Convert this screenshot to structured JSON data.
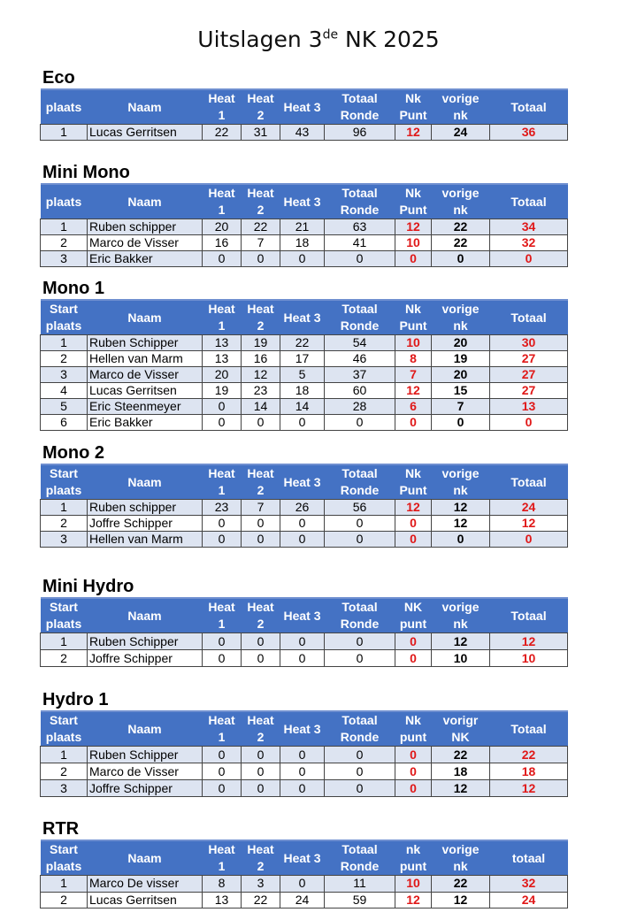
{
  "title": {
    "main": "Uitslagen 3",
    "sup": "de",
    "rest": " NK 2025"
  },
  "colors": {
    "header": "#4472c4",
    "alt_row": "#dde4f1",
    "red": "#e01818"
  },
  "tables": [
    {
      "name": "Eco",
      "headers": [
        "plaats",
        "Naam",
        "Heat\n1",
        "Heat\n2",
        "Heat 3",
        "Totaal\nRonde",
        "Nk\nPunt",
        "vorige\nnk",
        "Totaal"
      ],
      "rows": [
        [
          "1",
          "Lucas Gerritsen",
          "22",
          "31",
          "43",
          "96",
          "12",
          "24",
          "36"
        ]
      ]
    },
    {
      "name": "Mini Mono",
      "headers": [
        "plaats",
        "Naam",
        "Heat\n1",
        "Heat\n2",
        "Heat 3",
        "Totaal\nRonde",
        "Nk\nPunt",
        "vorige\nnk",
        "Totaal"
      ],
      "rows": [
        [
          "1",
          "Ruben schipper",
          "20",
          "22",
          "21",
          "63",
          "12",
          "22",
          "34"
        ],
        [
          "2",
          "Marco de Visser",
          "16",
          "7",
          "18",
          "41",
          "10",
          "22",
          "32"
        ],
        [
          "3",
          "Eric Bakker",
          "0",
          "0",
          "0",
          "0",
          "0",
          "0",
          "0"
        ]
      ]
    },
    {
      "name": "Mono 1",
      "headers": [
        "Start\nplaats",
        "Naam",
        "Heat\n1",
        "Heat\n2",
        "Heat 3",
        "Totaal\nRonde",
        "Nk\nPunt",
        "vorige\nnk",
        "Totaal"
      ],
      "rows": [
        [
          "1",
          "Ruben Schipper",
          "13",
          "19",
          "22",
          "54",
          "10",
          "20",
          "30"
        ],
        [
          "2",
          "Hellen van Marm",
          "13",
          "16",
          "17",
          "46",
          "8",
          "19",
          "27"
        ],
        [
          "3",
          "Marco de Visser",
          "20",
          "12",
          "5",
          "37",
          "7",
          "20",
          "27"
        ],
        [
          "4",
          "Lucas Gerritsen",
          "19",
          "23",
          "18",
          "60",
          "12",
          "15",
          "27"
        ],
        [
          "5",
          "Eric Steenmeyer",
          "0",
          "14",
          "14",
          "28",
          "6",
          "7",
          "13"
        ],
        [
          "6",
          "Eric Bakker",
          "0",
          "0",
          "0",
          "0",
          "0",
          "0",
          "0"
        ]
      ]
    },
    {
      "name": "Mono 2",
      "headers": [
        "Start\nplaats",
        "Naam",
        "Heat\n1",
        "Heat\n2",
        "Heat 3",
        "Totaal\nRonde",
        "Nk\nPunt",
        "vorige\nnk",
        "Totaal"
      ],
      "rows": [
        [
          "1",
          "Ruben schipper",
          "23",
          "7",
          "26",
          "56",
          "12",
          "12",
          "24"
        ],
        [
          "2",
          "Joffre Schipper",
          "0",
          "0",
          "0",
          "0",
          "0",
          "12",
          "12"
        ],
        [
          "3",
          "Hellen van Marm",
          "0",
          "0",
          "0",
          "0",
          "0",
          "0",
          "0"
        ]
      ]
    },
    {
      "name": "Mini Hydro",
      "headers": [
        "Start\nplaats",
        "Naam",
        "Heat\n1",
        "Heat\n2",
        "Heat 3",
        "Totaal\nRonde",
        "NK\npunt",
        "vorige\nnk",
        "Totaal"
      ],
      "rows": [
        [
          "1",
          "Ruben Schipper",
          "0",
          "0",
          "0",
          "0",
          "0",
          "12",
          "12"
        ],
        [
          "2",
          "Joffre Schipper",
          "0",
          "0",
          "0",
          "0",
          "0",
          "10",
          "10"
        ]
      ]
    },
    {
      "name": "Hydro 1",
      "headers": [
        "Start\nplaats",
        "Naam",
        "Heat\n1",
        "Heat\n2",
        "Heat 3",
        "Totaal\nRonde",
        "Nk\npunt",
        "vorigr\nNK",
        "Totaal"
      ],
      "rows": [
        [
          "1",
          "Ruben Schipper",
          "0",
          "0",
          "0",
          "0",
          "0",
          "22",
          "22"
        ],
        [
          "2",
          "Marco de Visser",
          "0",
          "0",
          "0",
          "0",
          "0",
          "18",
          "18"
        ],
        [
          "3",
          "Joffre Schipper",
          "0",
          "0",
          "0",
          "0",
          "0",
          "12",
          "12"
        ]
      ]
    },
    {
      "name": "RTR",
      "headers": [
        "Start\nplaats",
        "Naam",
        "Heat\n1",
        "Heat\n2",
        "Heat 3",
        "Totaal\nRonde",
        "nk\npunt",
        "vorige\nnk",
        "totaal"
      ],
      "rows": [
        [
          "1",
          "Marco De visser",
          "8",
          "3",
          "0",
          "11",
          "10",
          "22",
          "32"
        ],
        [
          "2",
          "Lucas Gerritsen",
          "13",
          "22",
          "24",
          "59",
          "12",
          "12",
          "24"
        ]
      ]
    }
  ]
}
